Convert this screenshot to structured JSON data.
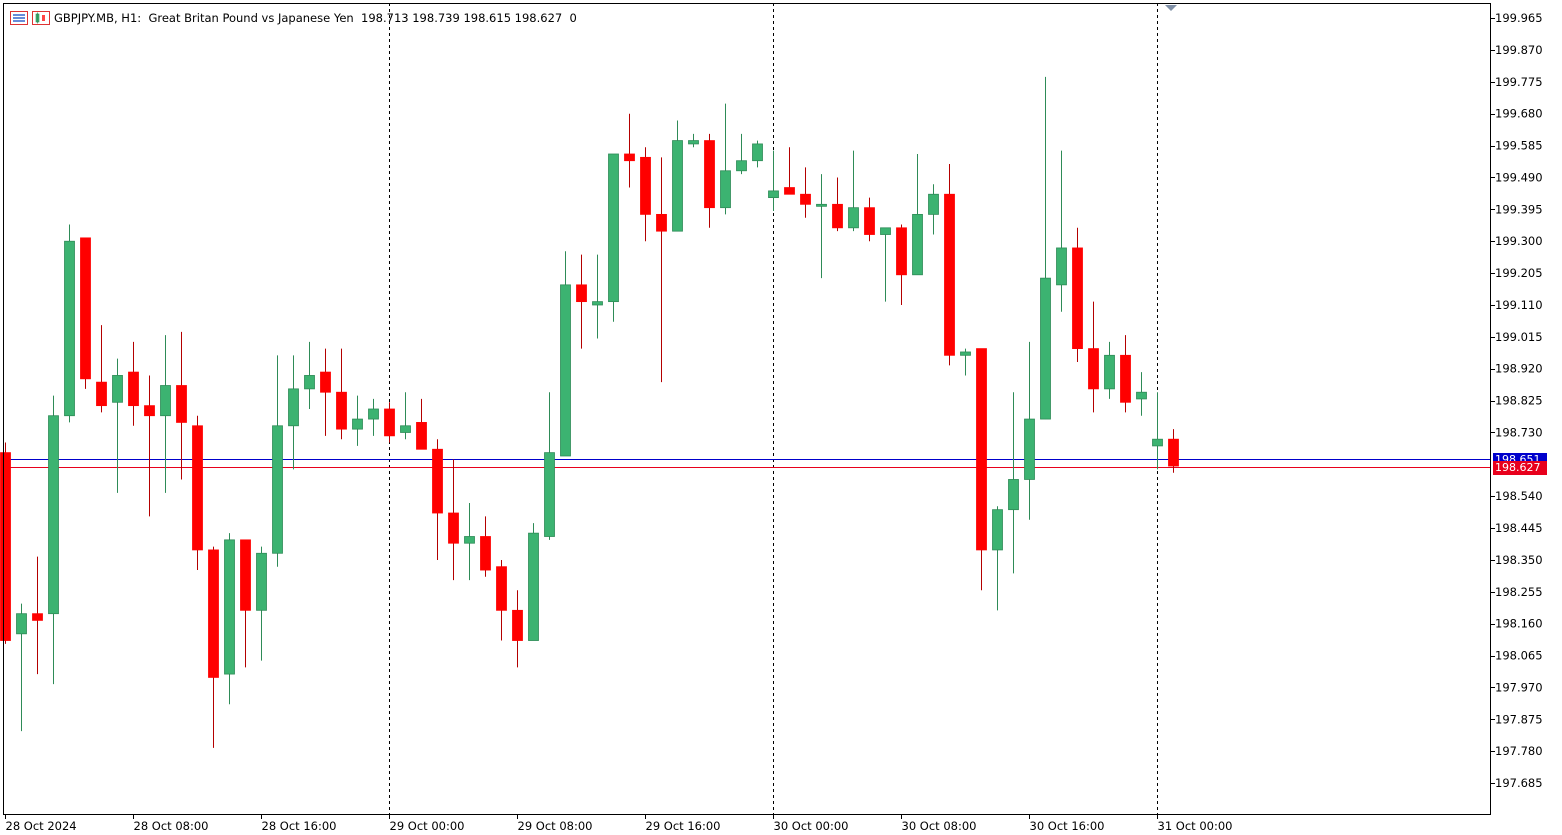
{
  "window": {
    "symbol": "GBPJPY.MB",
    "timeframe": "H1",
    "description": "Great Britan Pound vs Japanese Yen",
    "ohlc_text": "198.713 198.739 198.615 198.627",
    "volume_text": "0"
  },
  "y_axis": {
    "min": 197.59,
    "max": 200.01,
    "labels": [
      "199.965",
      "199.870",
      "199.775",
      "199.680",
      "199.585",
      "199.490",
      "199.395",
      "199.300",
      "199.205",
      "199.110",
      "199.015",
      "198.920",
      "198.825",
      "198.730",
      "198.540",
      "198.445",
      "198.350",
      "198.255",
      "198.160",
      "198.065",
      "197.970",
      "197.875",
      "197.780",
      "197.685"
    ]
  },
  "x_axis": {
    "labels": [
      "28 Oct 2024",
      "28 Oct 08:00",
      "28 Oct 16:00",
      "29 Oct 00:00",
      "29 Oct 08:00",
      "29 Oct 16:00",
      "30 Oct 00:00",
      "30 Oct 08:00",
      "30 Oct 16:00",
      "31 Oct 00:00"
    ],
    "day_separators_at_bar": [
      24,
      48,
      72
    ]
  },
  "price_lines": {
    "ask": {
      "value": 198.651,
      "label": "198.651",
      "color": "#0000cc"
    },
    "bid": {
      "value": 198.627,
      "label": "198.627",
      "color": "#e8001c"
    }
  },
  "colors": {
    "bull": "#3cb371",
    "bear": "#ff0000",
    "wick_bull": "#2e8b57",
    "wick_bear": "#b40000",
    "grid": "#000000"
  },
  "chart_data": {
    "type": "candlestick",
    "title": "GBPJPY.MB, H1: Great Britan Pound vs Japanese Yen",
    "candles": [
      [
        198.67,
        198.7,
        198.1,
        198.11
      ],
      [
        198.13,
        198.22,
        197.84,
        198.19
      ],
      [
        198.19,
        198.36,
        198.01,
        198.17
      ],
      [
        198.19,
        198.84,
        197.98,
        198.78
      ],
      [
        198.78,
        199.35,
        198.76,
        199.3
      ],
      [
        199.31,
        199.31,
        198.86,
        198.89
      ],
      [
        198.88,
        199.05,
        198.79,
        198.81
      ],
      [
        198.82,
        198.95,
        198.55,
        198.9
      ],
      [
        198.91,
        199.0,
        198.75,
        198.81
      ],
      [
        198.81,
        198.9,
        198.48,
        198.78
      ],
      [
        198.78,
        199.02,
        198.55,
        198.87
      ],
      [
        198.87,
        199.03,
        198.59,
        198.76
      ],
      [
        198.75,
        198.78,
        198.32,
        198.38
      ],
      [
        198.38,
        198.39,
        197.79,
        198.0
      ],
      [
        198.01,
        198.43,
        197.92,
        198.41
      ],
      [
        198.41,
        198.41,
        198.03,
        198.2
      ],
      [
        198.2,
        198.39,
        198.05,
        198.37
      ],
      [
        198.37,
        198.96,
        198.33,
        198.75
      ],
      [
        198.75,
        198.96,
        198.62,
        198.86
      ],
      [
        198.86,
        199.0,
        198.8,
        198.9
      ],
      [
        198.91,
        198.98,
        198.72,
        198.85
      ],
      [
        198.85,
        198.98,
        198.71,
        198.74
      ],
      [
        198.74,
        198.84,
        198.69,
        198.77
      ],
      [
        198.77,
        198.83,
        198.72,
        198.8
      ],
      [
        198.8,
        198.82,
        198.7,
        198.72
      ],
      [
        198.73,
        198.85,
        198.71,
        198.75
      ],
      [
        198.76,
        198.83,
        198.68,
        198.68
      ],
      [
        198.68,
        198.71,
        198.35,
        198.49
      ],
      [
        198.49,
        198.65,
        198.29,
        198.4
      ],
      [
        198.4,
        198.52,
        198.29,
        198.42
      ],
      [
        198.42,
        198.48,
        198.3,
        198.32
      ],
      [
        198.33,
        198.35,
        198.11,
        198.2
      ],
      [
        198.2,
        198.26,
        198.03,
        198.11
      ],
      [
        198.11,
        198.46,
        198.11,
        198.43
      ],
      [
        198.42,
        198.85,
        198.41,
        198.67
      ],
      [
        198.66,
        199.27,
        198.67,
        199.17
      ],
      [
        199.17,
        199.26,
        198.98,
        199.12
      ],
      [
        199.11,
        199.26,
        199.01,
        199.12
      ],
      [
        199.12,
        199.56,
        199.06,
        199.56
      ],
      [
        199.56,
        199.68,
        199.46,
        199.54
      ],
      [
        199.55,
        199.58,
        199.3,
        199.38
      ],
      [
        199.38,
        199.55,
        198.88,
        199.33
      ],
      [
        199.33,
        199.66,
        199.33,
        199.6
      ],
      [
        199.59,
        199.62,
        199.58,
        199.6
      ],
      [
        199.6,
        199.62,
        199.34,
        199.4
      ],
      [
        199.4,
        199.71,
        199.38,
        199.51
      ],
      [
        199.51,
        199.62,
        199.5,
        199.54
      ],
      [
        199.54,
        199.6,
        199.52,
        199.59
      ],
      [
        199.43,
        199.57,
        199.39,
        199.45
      ],
      [
        199.46,
        199.58,
        199.44,
        199.44
      ],
      [
        199.44,
        199.52,
        199.37,
        199.41
      ],
      [
        199.41,
        199.5,
        199.19,
        199.41
      ],
      [
        199.41,
        199.49,
        199.33,
        199.34
      ],
      [
        199.34,
        199.57,
        199.33,
        199.4
      ],
      [
        199.4,
        199.43,
        199.3,
        199.32
      ],
      [
        199.32,
        199.34,
        199.12,
        199.34
      ],
      [
        199.34,
        199.35,
        199.11,
        199.2
      ],
      [
        199.2,
        199.56,
        199.21,
        199.38
      ],
      [
        199.38,
        199.47,
        199.32,
        199.44
      ],
      [
        199.44,
        199.53,
        198.93,
        198.96
      ],
      [
        198.96,
        198.98,
        198.9,
        198.97
      ],
      [
        198.98,
        198.98,
        198.26,
        198.38
      ],
      [
        198.38,
        198.51,
        198.2,
        198.5
      ],
      [
        198.5,
        198.85,
        198.31,
        198.59
      ],
      [
        198.59,
        199.0,
        198.47,
        198.77
      ],
      [
        198.77,
        199.79,
        198.77,
        199.19
      ],
      [
        199.17,
        199.57,
        199.09,
        199.28
      ],
      [
        199.28,
        199.34,
        198.94,
        198.98
      ],
      [
        198.98,
        199.12,
        198.79,
        198.86
      ],
      [
        198.86,
        199.0,
        198.83,
        198.96
      ],
      [
        198.96,
        199.02,
        198.79,
        198.82
      ],
      [
        198.83,
        198.91,
        198.78,
        198.85
      ],
      [
        198.69,
        198.85,
        198.62,
        198.71
      ],
      [
        198.71,
        198.74,
        198.61,
        198.63
      ]
    ]
  }
}
